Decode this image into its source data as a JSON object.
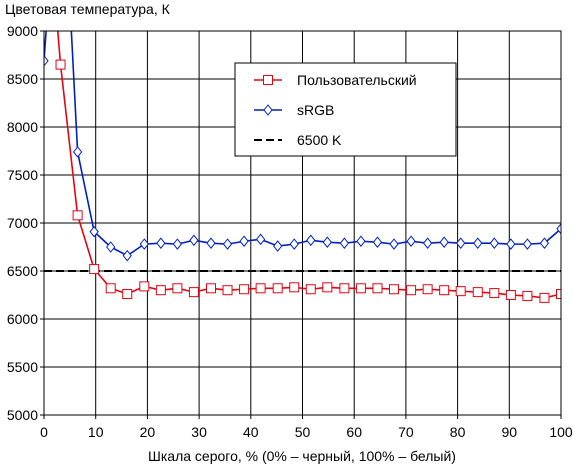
{
  "chart_data": {
    "type": "line",
    "title": "Цветовая температура, К",
    "xlabel": "Шкала серого, % (0% – черный, 100% – белый)",
    "ylabel": "",
    "xlim": [
      0,
      100
    ],
    "ylim": [
      5000,
      9000
    ],
    "xticks": [
      0,
      10,
      20,
      30,
      40,
      50,
      60,
      70,
      80,
      90,
      100
    ],
    "yticks": [
      5000,
      5500,
      6000,
      6500,
      7000,
      7500,
      8000,
      8500,
      9000
    ],
    "grid": {
      "horizontal": true,
      "vertical": true
    },
    "legend_position": "top-right",
    "series": [
      {
        "name": "Пользовательский",
        "color": "#e30613",
        "marker": "square",
        "x": [
          3.2,
          6.5,
          9.7,
          12.9,
          16.1,
          19.4,
          22.6,
          25.8,
          29.0,
          32.3,
          35.5,
          38.7,
          41.9,
          45.2,
          48.4,
          51.6,
          54.8,
          58.1,
          61.3,
          64.5,
          67.7,
          71.0,
          74.2,
          77.4,
          80.6,
          83.9,
          87.1,
          90.3,
          93.5,
          96.8,
          100
        ],
        "y": [
          8650,
          7080,
          6520,
          6320,
          6260,
          6340,
          6300,
          6320,
          6280,
          6320,
          6300,
          6310,
          6320,
          6320,
          6330,
          6310,
          6330,
          6320,
          6320,
          6320,
          6310,
          6300,
          6310,
          6300,
          6290,
          6280,
          6270,
          6250,
          6240,
          6220,
          6260
        ]
      },
      {
        "name": "sRGB",
        "color": "#0020c2",
        "marker": "diamond",
        "x": [
          0,
          6.5,
          9.7,
          12.9,
          16.1,
          19.4,
          22.6,
          25.8,
          29.0,
          32.3,
          35.5,
          38.7,
          41.9,
          45.2,
          48.4,
          51.6,
          54.8,
          58.1,
          61.3,
          64.5,
          67.7,
          71.0,
          74.2,
          77.4,
          80.6,
          83.9,
          87.1,
          90.3,
          93.5,
          96.8,
          100
        ],
        "y": [
          8690,
          7740,
          6910,
          6750,
          6660,
          6780,
          6790,
          6780,
          6820,
          6790,
          6780,
          6810,
          6830,
          6760,
          6780,
          6820,
          6800,
          6790,
          6810,
          6800,
          6780,
          6810,
          6790,
          6800,
          6790,
          6790,
          6790,
          6780,
          6780,
          6790,
          6940
        ]
      },
      {
        "name": "6500 K",
        "color": "#000000",
        "marker": "none",
        "dashed": true,
        "x": [
          0,
          100
        ],
        "y": [
          6500,
          6500
        ]
      }
    ]
  }
}
